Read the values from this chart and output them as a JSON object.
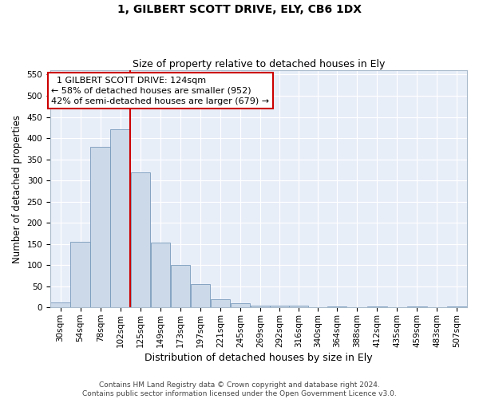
{
  "title_line1": "1, GILBERT SCOTT DRIVE, ELY, CB6 1DX",
  "title_line2": "Size of property relative to detached houses in Ely",
  "xlabel": "Distribution of detached houses by size in Ely",
  "ylabel": "Number of detached properties",
  "bar_color": "#ccd9e8",
  "bar_edge_color": "#7799bb",
  "background_color": "#e8eef8",
  "grid_color": "#ffffff",
  "annotation_text_line1": "  1 GILBERT SCOTT DRIVE: 124sqm",
  "annotation_text_line2": "← 58% of detached houses are smaller (952)",
  "annotation_text_line3": "42% of semi-detached houses are larger (679) →",
  "categories": [
    "30sqm",
    "54sqm",
    "78sqm",
    "102sqm",
    "125sqm",
    "149sqm",
    "173sqm",
    "197sqm",
    "221sqm",
    "245sqm",
    "269sqm",
    "292sqm",
    "316sqm",
    "340sqm",
    "364sqm",
    "388sqm",
    "412sqm",
    "435sqm",
    "459sqm",
    "483sqm",
    "507sqm"
  ],
  "bin_left_edges": [
    18,
    42,
    66,
    90,
    114,
    138,
    162,
    186,
    210,
    234,
    258,
    281,
    304,
    327,
    350,
    374,
    398,
    422,
    446,
    470,
    494
  ],
  "bin_width": 24,
  "values": [
    12,
    155,
    380,
    420,
    320,
    153,
    100,
    55,
    20,
    10,
    5,
    5,
    5,
    1,
    3,
    1,
    3,
    1,
    3,
    1,
    3
  ],
  "red_line_x": 114,
  "xlim_left": 18,
  "xlim_right": 518,
  "ylim": [
    0,
    560
  ],
  "yticks": [
    0,
    50,
    100,
    150,
    200,
    250,
    300,
    350,
    400,
    450,
    500,
    550
  ],
  "footer_text": "Contains HM Land Registry data © Crown copyright and database right 2024.\nContains public sector information licensed under the Open Government Licence v3.0.",
  "title_fontsize": 10,
  "subtitle_fontsize": 9,
  "axis_label_fontsize": 8.5,
  "tick_fontsize": 7.5,
  "annotation_fontsize": 8,
  "footer_fontsize": 6.5
}
